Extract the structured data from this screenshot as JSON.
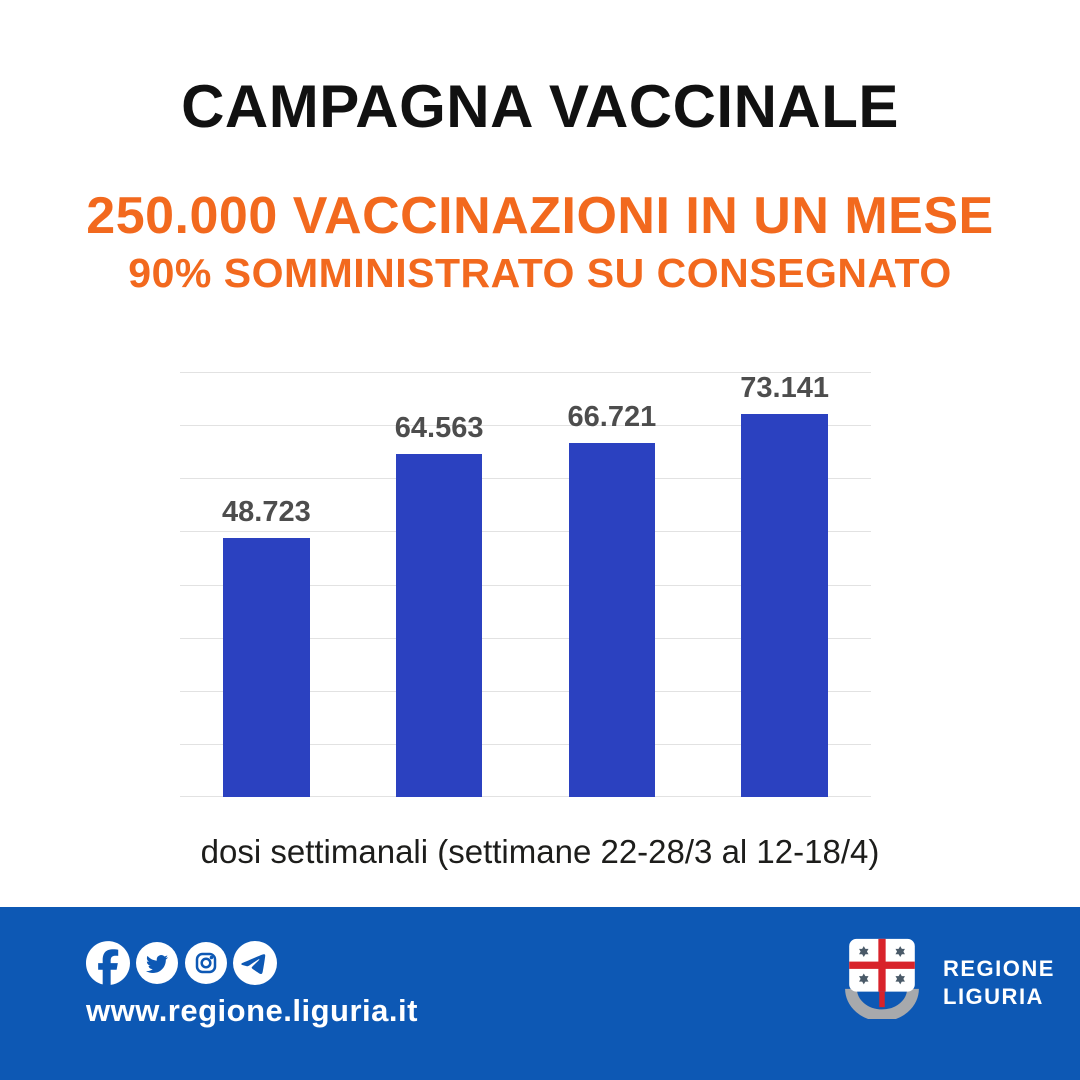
{
  "header": {
    "title": "CAMPAGNA VACCINALE",
    "headline": "250.000 VACCINAZIONI IN UN MESE",
    "subheadline": "90% SOMMINISTRATO SU CONSEGNATO"
  },
  "chart_data": {
    "type": "bar",
    "categories": [
      "",
      "",
      "",
      ""
    ],
    "values": [
      48723,
      64563,
      66721,
      73141
    ],
    "value_labels": [
      "48.723",
      "64.563",
      "66.721",
      "73.141"
    ],
    "title": "",
    "xlabel": "dosi settimanali (settimane 22-28/3 al 12-18/4)",
    "ylabel": "",
    "ylim": [
      0,
      80000
    ],
    "gridline_interval": 10000,
    "grid": "horizontal",
    "legend": "none",
    "bar_color": "#2B41C0",
    "label_color": "#4d4d4d"
  },
  "caption": "dosi settimanali (settimane 22-28/3 al 12-18/4)",
  "footer": {
    "url": "www.regione.liguria.it",
    "social_icons": [
      "facebook-icon",
      "twitter-icon",
      "instagram-icon",
      "telegram-icon"
    ],
    "logo_line1": "REGIONE",
    "logo_line2": "LIGURIA"
  },
  "colors": {
    "accent_orange": "#F2691E",
    "bar_blue": "#2B41C0",
    "footer_blue": "#0D58B4",
    "gridline_gray": "#e2e2e2"
  }
}
